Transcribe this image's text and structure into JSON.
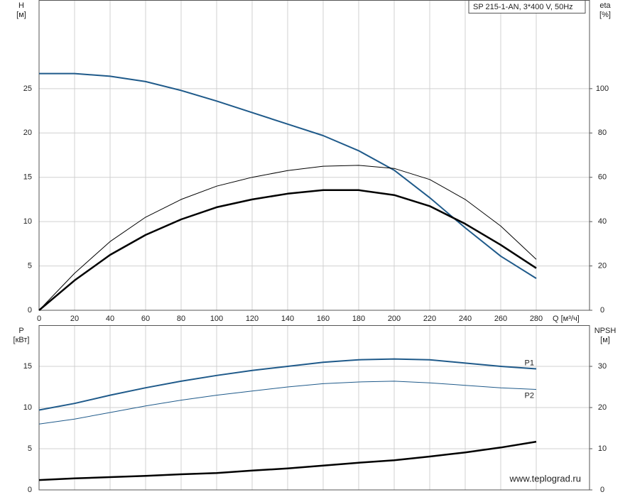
{
  "chart_data": [
    {
      "type": "line",
      "title": "SP 215-1-AN, 3*400 V, 50Hz",
      "x_label": "Q [м³/ч]",
      "y_label": "H",
      "y_unit": "[м]",
      "y2_label": "eta",
      "y2_unit": "[%]",
      "x": [
        0,
        20,
        40,
        60,
        80,
        100,
        120,
        140,
        160,
        180,
        200,
        220,
        240,
        260,
        280
      ],
      "xlim": [
        0,
        310
      ],
      "xticks": [
        0,
        20,
        40,
        60,
        80,
        100,
        120,
        140,
        160,
        180,
        200,
        220,
        240,
        260,
        280
      ],
      "ylim": [
        0,
        35
      ],
      "yticks": [
        0,
        5,
        10,
        15,
        20,
        25
      ],
      "y2lim": [
        0,
        140
      ],
      "y2ticks": [
        0,
        20,
        40,
        60,
        80,
        100
      ],
      "grid": true,
      "series": [
        {
          "color": "#1f5a8a",
          "width": 2,
          "values": [
            26.7,
            26.7,
            26.4,
            25.8,
            24.8,
            23.6,
            22.3,
            21.0,
            19.7,
            18.0,
            15.8,
            12.7,
            9.3,
            6.1,
            3.6
          ]
        },
        {
          "color": "#000000",
          "width": 1,
          "axis": "y2",
          "values": [
            0,
            16.7,
            31,
            42,
            50,
            56,
            60,
            63,
            65,
            65.4,
            64,
            59,
            50,
            38,
            23
          ]
        },
        {
          "color": "#000000",
          "width": 2.5,
          "axis": "y2",
          "values": [
            0,
            13.5,
            25,
            34,
            41,
            46.5,
            50,
            52.6,
            54.2,
            54.2,
            52,
            47,
            39,
            29.5,
            19
          ]
        }
      ]
    },
    {
      "type": "line",
      "y_label": "P",
      "y_unit": "[кВт]",
      "y2_label": "NPSH",
      "y2_unit": "[м]",
      "watermark": "www.teplograd.ru",
      "x": [
        0,
        20,
        40,
        60,
        80,
        100,
        120,
        140,
        160,
        180,
        200,
        220,
        240,
        260,
        280
      ],
      "xlim": [
        0,
        310
      ],
      "xticks": [
        0,
        20,
        40,
        60,
        80,
        100,
        120,
        140,
        160,
        180,
        200,
        220,
        240,
        260,
        280
      ],
      "xtick_labels": false,
      "ylim": [
        0,
        20
      ],
      "yticks": [
        0,
        5,
        10,
        15
      ],
      "y2lim": [
        0,
        40
      ],
      "y2ticks": [
        0,
        10,
        20,
        30
      ],
      "grid": true,
      "series": [
        {
          "name": "P1",
          "color": "#1f5a8a",
          "width": 2,
          "values": [
            9.7,
            10.5,
            11.5,
            12.4,
            13.2,
            13.9,
            14.5,
            15.0,
            15.5,
            15.8,
            15.9,
            15.8,
            15.4,
            15.0,
            14.7
          ]
        },
        {
          "name": "P2",
          "color": "#1f5a8a",
          "width": 1,
          "values": [
            8.0,
            8.6,
            9.4,
            10.2,
            10.9,
            11.5,
            12.0,
            12.5,
            12.9,
            13.1,
            13.2,
            13.0,
            12.7,
            12.4,
            12.2
          ]
        },
        {
          "color": "#000000",
          "width": 2.5,
          "axis": "y2",
          "values": [
            2.4,
            2.8,
            3.1,
            3.4,
            3.8,
            4.1,
            4.7,
            5.2,
            5.9,
            6.6,
            7.2,
            8.1,
            9.1,
            10.3,
            11.7
          ]
        }
      ]
    }
  ]
}
